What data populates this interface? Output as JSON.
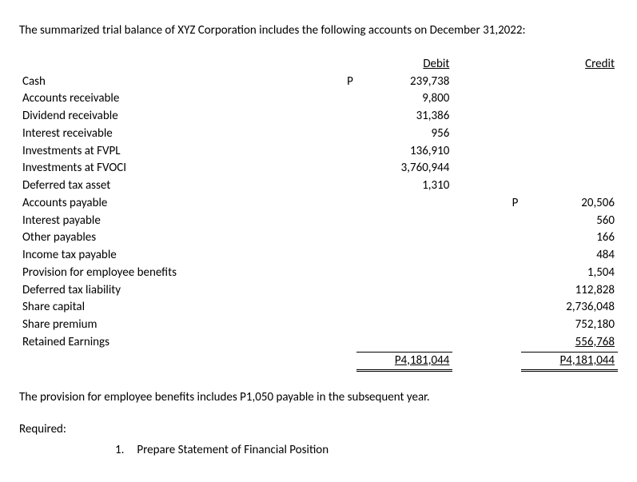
{
  "colors": {
    "text": "#000000",
    "background": "#ffffff",
    "rule": "#000000"
  },
  "typography": {
    "fontFamily": "Calibri, Arial, sans-serif",
    "fontSizePt": 11,
    "lineHeight": 1.45
  },
  "intro": "The summarized trial balance of XYZ Corporation includes the following accounts on December 31,2022:",
  "table": {
    "headers": {
      "debit": "Debit",
      "credit": "Credit"
    },
    "currencySymbol": "P",
    "rows": {
      "cash": {
        "label": "Cash",
        "debitSym": "P",
        "debit": "239,738",
        "creditSym": "",
        "credit": ""
      },
      "ar": {
        "label": "Accounts receivable",
        "debitSym": "",
        "debit": "9,800",
        "creditSym": "",
        "credit": ""
      },
      "divRec": {
        "label": "Dividend receivable",
        "debitSym": "",
        "debit": "31,386",
        "creditSym": "",
        "credit": ""
      },
      "intRec": {
        "label": "Interest receivable",
        "debitSym": "",
        "debit": "956",
        "creditSym": "",
        "credit": ""
      },
      "fvpl": {
        "label": "Investments at FVPL",
        "debitSym": "",
        "debit": "136,910",
        "creditSym": "",
        "credit": ""
      },
      "fvoci": {
        "label": "Investments at FVOCI",
        "debitSym": "",
        "debit": "3,760,944",
        "creditSym": "",
        "credit": ""
      },
      "dta": {
        "label": "Deferred tax asset",
        "debitSym": "",
        "debit": "1,310",
        "creditSym": "",
        "credit": ""
      },
      "ap": {
        "label": "Accounts payable",
        "debitSym": "",
        "debit": "",
        "creditSym": "P",
        "credit": "20,506"
      },
      "intPay": {
        "label": "Interest payable",
        "debitSym": "",
        "debit": "",
        "creditSym": "",
        "credit": "560"
      },
      "otherPay": {
        "label": "Other payables",
        "debitSym": "",
        "debit": "",
        "creditSym": "",
        "credit": "166"
      },
      "incTax": {
        "label": "Income tax payable",
        "debitSym": "",
        "debit": "",
        "creditSym": "",
        "credit": "484"
      },
      "provEmp": {
        "label": "Provision for employee benefits",
        "debitSym": "",
        "debit": "",
        "creditSym": "",
        "credit": "1,504"
      },
      "dtl": {
        "label": "Deferred tax liability",
        "debitSym": "",
        "debit": "",
        "creditSym": "",
        "credit": "112,828"
      },
      "shareCap": {
        "label": "Share capital",
        "debitSym": "",
        "debit": "",
        "creditSym": "",
        "credit": "2,736,048"
      },
      "sharePrem": {
        "label": "Share premium",
        "debitSym": "",
        "debit": "",
        "creditSym": "",
        "credit": "752,180"
      },
      "re": {
        "label": "Retained Earnings",
        "debitSym": "",
        "debit": "",
        "creditSym": "",
        "credit": "556,768"
      }
    },
    "totals": {
      "debit": "P4,181,044",
      "credit": "P4,181,044"
    }
  },
  "note": "The provision for employee benefits includes P1,050 payable in the subsequent year.",
  "required": {
    "label": "Required:",
    "items": {
      "i1": {
        "num": "1.",
        "text": "Prepare  Statement of Financial Position"
      }
    }
  }
}
